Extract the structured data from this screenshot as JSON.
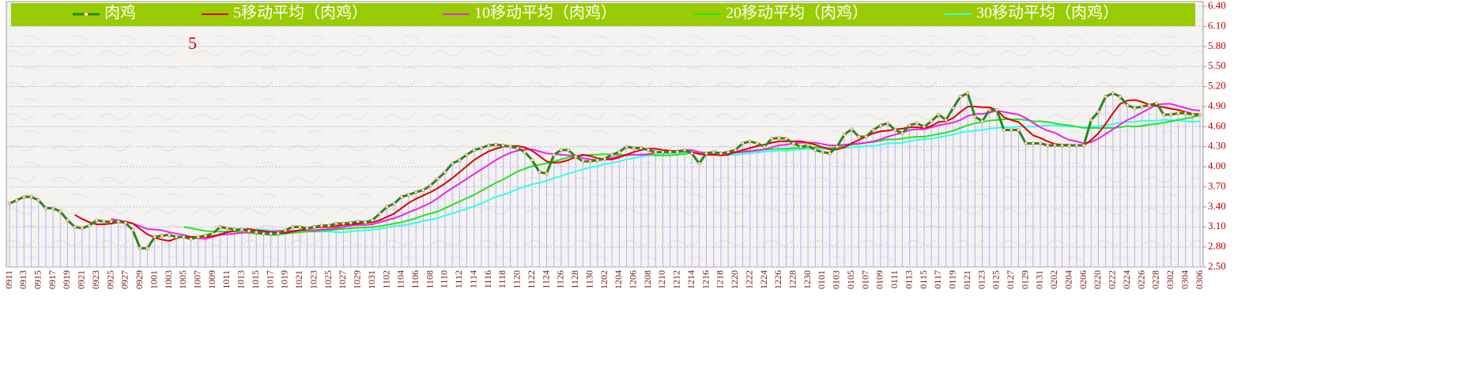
{
  "chart_data": {
    "type": "line",
    "annotation": "5",
    "grid": true,
    "ylim": [
      2.5,
      6.4
    ],
    "yticks": [
      {
        "value": 2.5,
        "label": "2.50"
      },
      {
        "value": 2.8,
        "label": "2.80"
      },
      {
        "value": 3.1,
        "label": "3.10"
      },
      {
        "value": 3.4,
        "label": "3.40"
      },
      {
        "value": 3.7,
        "label": "3.70"
      },
      {
        "value": 4.0,
        "label": "4.00"
      },
      {
        "value": 4.3,
        "label": "4.30"
      },
      {
        "value": 4.6,
        "label": "4.60"
      },
      {
        "value": 4.9,
        "label": "4.90"
      },
      {
        "value": 5.2,
        "label": "5.20"
      },
      {
        "value": 5.5,
        "label": "5.50"
      },
      {
        "value": 5.8,
        "label": "5.80"
      },
      {
        "value": 6.1,
        "label": "6.10"
      },
      {
        "value": 6.4,
        "label": "6.40"
      }
    ],
    "categories": [
      "0911",
      null,
      "0913",
      null,
      "0915",
      null,
      "0917",
      null,
      "0919",
      null,
      "0921",
      null,
      "0923",
      null,
      "0925",
      null,
      "0927",
      null,
      "0929",
      null,
      "1001",
      null,
      "1003",
      null,
      "1005",
      null,
      "1007",
      null,
      "1009",
      null,
      "1011",
      null,
      "1013",
      null,
      "1015",
      null,
      "1017",
      null,
      "1019",
      null,
      "1021",
      null,
      "1023",
      null,
      "1025",
      null,
      "1027",
      null,
      "1029",
      null,
      "1031",
      null,
      "1102",
      null,
      "1104",
      null,
      "1106",
      null,
      "1108",
      null,
      "1110",
      null,
      "1112",
      null,
      "1114",
      null,
      "1116",
      null,
      "1118",
      null,
      "1120",
      null,
      "1122",
      null,
      "1124",
      null,
      "1126",
      null,
      "1128",
      null,
      "1130",
      null,
      "1202",
      null,
      "1204",
      null,
      "1206",
      null,
      "1208",
      null,
      "1210",
      null,
      "1212",
      null,
      "1214",
      null,
      "1216",
      null,
      "1218",
      null,
      "1220",
      null,
      "1222",
      null,
      "1224",
      null,
      "1226",
      null,
      "1228",
      null,
      "1230",
      null,
      "0101",
      null,
      "0103",
      null,
      "0105",
      null,
      "0107",
      null,
      "0109",
      null,
      "0111",
      null,
      "0113",
      null,
      "0115",
      null,
      "0117",
      null,
      "0119",
      null,
      "0121",
      null,
      "0123",
      null,
      "0125",
      null,
      "0127",
      null,
      "0129",
      null,
      "0131",
      null,
      "0202",
      null,
      "0204",
      null,
      "0206",
      null,
      "0220",
      null,
      "0222",
      null,
      "0224",
      null,
      "0226",
      null,
      "0228",
      null,
      "0302",
      null,
      "0304",
      null,
      "0306"
    ],
    "series": [
      {
        "name": "肉鸡",
        "color": "#1e8c1e",
        "values": [
          3.45,
          3.5,
          3.55,
          3.55,
          3.5,
          3.38,
          3.38,
          3.33,
          3.2,
          3.1,
          3.08,
          3.12,
          3.2,
          3.18,
          3.18,
          3.18,
          3.16,
          3.05,
          2.78,
          2.78,
          2.95,
          2.97,
          2.98,
          2.95,
          2.95,
          2.92,
          2.95,
          2.97,
          3.0,
          3.1,
          3.08,
          3.06,
          3.06,
          3.04,
          3.02,
          3.0,
          3.0,
          3.0,
          3.05,
          3.1,
          3.1,
          3.08,
          3.1,
          3.12,
          3.12,
          3.15,
          3.15,
          3.16,
          3.18,
          3.17,
          3.2,
          3.3,
          3.4,
          3.45,
          3.55,
          3.58,
          3.62,
          3.65,
          3.72,
          3.82,
          3.92,
          4.05,
          4.1,
          4.18,
          4.25,
          4.28,
          4.32,
          4.33,
          4.32,
          4.3,
          4.28,
          4.22,
          4.1,
          3.92,
          3.9,
          4.18,
          4.25,
          4.25,
          4.15,
          4.08,
          4.08,
          4.1,
          4.12,
          4.18,
          4.22,
          4.3,
          4.28,
          4.28,
          4.25,
          4.22,
          4.22,
          4.22,
          4.22,
          4.25,
          4.2,
          4.05,
          4.2,
          4.22,
          4.2,
          4.22,
          4.25,
          4.35,
          4.38,
          4.35,
          4.3,
          4.42,
          4.43,
          4.42,
          4.35,
          4.3,
          4.32,
          4.25,
          4.22,
          4.2,
          4.3,
          4.48,
          4.56,
          4.45,
          4.45,
          4.55,
          4.62,
          4.65,
          4.55,
          4.5,
          4.62,
          4.65,
          4.6,
          4.68,
          4.78,
          4.7,
          4.88,
          5.05,
          5.1,
          4.75,
          4.68,
          4.85,
          4.85,
          4.55,
          4.55,
          4.55,
          4.35,
          4.35,
          4.35,
          4.32,
          4.32,
          4.32,
          4.32,
          4.32,
          4.32,
          4.7,
          4.82,
          5.05,
          5.1,
          5.05,
          4.92,
          4.88,
          4.9,
          4.92,
          4.95,
          4.78,
          4.78,
          4.8,
          4.8,
          4.78,
          4.78
        ]
      },
      {
        "name": "5移动平均（肉鸡）",
        "color": "#e00000",
        "values": [
          null,
          null,
          null,
          null,
          null,
          null,
          null,
          null,
          null,
          3.28,
          3.22,
          3.17,
          3.14,
          3.14,
          3.15,
          3.17,
          3.18,
          3.15,
          3.07,
          2.99,
          2.94,
          2.91,
          2.89,
          2.93,
          2.96,
          2.95,
          2.95,
          2.95,
          2.96,
          2.99,
          3.02,
          3.04,
          3.06,
          3.07,
          3.05,
          3.04,
          3.02,
          3.01,
          3.01,
          3.03,
          3.05,
          3.07,
          3.09,
          3.1,
          3.1,
          3.11,
          3.13,
          3.14,
          3.15,
          3.16,
          3.17,
          3.2,
          3.25,
          3.3,
          3.38,
          3.46,
          3.52,
          3.57,
          3.62,
          3.68,
          3.75,
          3.83,
          3.92,
          4.01,
          4.1,
          4.17,
          4.23,
          4.27,
          4.3,
          4.31,
          4.31,
          4.29,
          4.24,
          4.16,
          4.08,
          4.06,
          4.07,
          4.1,
          4.15,
          4.18,
          4.16,
          4.13,
          4.11,
          4.11,
          4.14,
          4.18,
          4.22,
          4.25,
          4.27,
          4.27,
          4.25,
          4.24,
          4.23,
          4.23,
          4.22,
          4.19,
          4.18,
          4.18,
          4.17,
          4.18,
          4.22,
          4.25,
          4.28,
          4.31,
          4.33,
          4.36,
          4.38,
          4.38,
          4.38,
          4.38,
          4.36,
          4.33,
          4.29,
          4.26,
          4.26,
          4.29,
          4.35,
          4.4,
          4.45,
          4.5,
          4.53,
          4.54,
          4.56,
          4.57,
          4.59,
          4.59,
          4.58,
          4.61,
          4.67,
          4.68,
          4.73,
          4.82,
          4.9,
          4.9,
          4.89,
          4.89,
          4.85,
          4.74,
          4.7,
          4.67,
          4.57,
          4.47,
          4.43,
          4.38,
          4.34,
          4.33,
          4.33,
          4.32,
          4.32,
          4.4,
          4.5,
          4.64,
          4.8,
          4.94,
          4.99,
          5.0,
          4.97,
          4.93,
          4.91,
          4.89,
          4.87,
          4.85,
          4.82,
          4.79,
          4.79
        ]
      },
      {
        "name": "10移动平均（肉鸡）",
        "color": "#ee22ee",
        "values": [
          null,
          null,
          null,
          null,
          null,
          null,
          null,
          null,
          null,
          null,
          null,
          null,
          null,
          null,
          3.22,
          3.2,
          3.18,
          3.15,
          3.11,
          3.07,
          3.06,
          3.05,
          3.02,
          3.0,
          2.98,
          2.95,
          2.93,
          2.92,
          2.95,
          2.98,
          2.99,
          3.0,
          3.01,
          3.02,
          3.02,
          3.03,
          3.03,
          3.04,
          3.04,
          3.04,
          3.05,
          3.05,
          3.05,
          3.06,
          3.07,
          3.08,
          3.1,
          3.12,
          3.13,
          3.13,
          3.14,
          3.17,
          3.2,
          3.23,
          3.27,
          3.32,
          3.36,
          3.41,
          3.46,
          3.53,
          3.61,
          3.68,
          3.75,
          3.82,
          3.89,
          3.96,
          4.03,
          4.1,
          4.16,
          4.21,
          4.24,
          4.26,
          4.26,
          4.23,
          4.2,
          4.19,
          4.18,
          4.17,
          4.16,
          4.13,
          4.11,
          4.1,
          4.11,
          4.13,
          4.16,
          4.17,
          4.18,
          4.18,
          4.19,
          4.21,
          4.22,
          4.23,
          4.24,
          4.25,
          4.25,
          4.22,
          4.21,
          4.21,
          4.2,
          4.2,
          4.21,
          4.22,
          4.23,
          4.24,
          4.26,
          4.29,
          4.32,
          4.33,
          4.35,
          4.36,
          4.36,
          4.36,
          4.34,
          4.32,
          4.32,
          4.33,
          4.34,
          4.35,
          4.36,
          4.38,
          4.41,
          4.45,
          4.48,
          4.51,
          4.55,
          4.56,
          4.56,
          4.59,
          4.62,
          4.64,
          4.66,
          4.7,
          4.76,
          4.79,
          4.79,
          4.81,
          4.84,
          4.82,
          4.8,
          4.78,
          4.73,
          4.66,
          4.59,
          4.54,
          4.51,
          4.45,
          4.4,
          4.38,
          4.35,
          4.37,
          4.42,
          4.49,
          4.56,
          4.63,
          4.7,
          4.75,
          4.81,
          4.87,
          4.93,
          4.94,
          4.94,
          4.91,
          4.88,
          4.85,
          4.84
        ]
      },
      {
        "name": "20移动平均（肉鸡）",
        "color": "#22e622",
        "values": [
          null,
          null,
          null,
          null,
          null,
          null,
          null,
          null,
          null,
          null,
          null,
          null,
          null,
          null,
          null,
          null,
          null,
          null,
          null,
          null,
          null,
          null,
          null,
          null,
          3.1,
          3.08,
          3.06,
          3.04,
          3.03,
          3.03,
          3.03,
          3.03,
          3.02,
          3.01,
          3.0,
          2.99,
          2.98,
          2.98,
          3.0,
          3.01,
          3.02,
          3.03,
          3.03,
          3.04,
          3.05,
          3.06,
          3.07,
          3.08,
          3.09,
          3.09,
          3.1,
          3.11,
          3.13,
          3.15,
          3.17,
          3.2,
          3.23,
          3.27,
          3.3,
          3.33,
          3.38,
          3.43,
          3.48,
          3.53,
          3.58,
          3.64,
          3.7,
          3.76,
          3.81,
          3.87,
          3.93,
          3.97,
          4.01,
          4.03,
          4.05,
          4.08,
          4.11,
          4.14,
          4.16,
          4.17,
          4.18,
          4.18,
          4.19,
          4.18,
          4.18,
          4.18,
          4.18,
          4.18,
          4.18,
          4.17,
          4.17,
          4.17,
          4.18,
          4.19,
          4.21,
          4.2,
          4.2,
          4.2,
          4.2,
          4.21,
          4.22,
          4.23,
          4.24,
          4.25,
          4.26,
          4.26,
          4.27,
          4.27,
          4.28,
          4.28,
          4.29,
          4.29,
          4.29,
          4.28,
          4.29,
          4.31,
          4.33,
          4.34,
          4.36,
          4.37,
          4.39,
          4.41,
          4.41,
          4.42,
          4.44,
          4.45,
          4.45,
          4.47,
          4.49,
          4.51,
          4.54,
          4.58,
          4.62,
          4.65,
          4.67,
          4.69,
          4.7,
          4.71,
          4.71,
          4.71,
          4.7,
          4.68,
          4.68,
          4.67,
          4.65,
          4.63,
          4.62,
          4.6,
          4.58,
          4.58,
          4.58,
          4.58,
          4.58,
          4.59,
          4.61,
          4.6,
          4.61,
          4.63,
          4.64,
          4.66,
          4.68,
          4.7,
          4.72,
          4.74,
          4.77
        ]
      },
      {
        "name": "30移动平均（肉鸡）",
        "color": "#33ffee",
        "values": [
          null,
          null,
          null,
          null,
          null,
          null,
          null,
          null,
          null,
          null,
          null,
          null,
          null,
          null,
          null,
          null,
          null,
          null,
          null,
          null,
          null,
          null,
          null,
          null,
          null,
          null,
          null,
          null,
          null,
          null,
          null,
          null,
          null,
          null,
          3.07,
          3.06,
          3.05,
          3.04,
          3.04,
          3.03,
          3.03,
          3.04,
          3.03,
          3.03,
          3.03,
          3.02,
          3.02,
          3.03,
          3.04,
          3.05,
          3.06,
          3.07,
          3.09,
          3.11,
          3.12,
          3.14,
          3.16,
          3.19,
          3.21,
          3.23,
          3.27,
          3.3,
          3.34,
          3.37,
          3.41,
          3.45,
          3.5,
          3.55,
          3.58,
          3.62,
          3.67,
          3.7,
          3.74,
          3.76,
          3.79,
          3.83,
          3.86,
          3.9,
          3.93,
          3.96,
          3.99,
          4.01,
          4.04,
          4.06,
          4.08,
          4.11,
          4.13,
          4.15,
          4.17,
          4.18,
          4.19,
          4.2,
          4.21,
          4.2,
          4.21,
          4.2,
          4.19,
          4.19,
          4.19,
          4.18,
          4.18,
          4.19,
          4.2,
          4.21,
          4.23,
          4.23,
          4.24,
          4.24,
          4.25,
          4.26,
          4.27,
          4.27,
          4.27,
          4.27,
          4.28,
          4.28,
          4.29,
          4.3,
          4.31,
          4.31,
          4.33,
          4.35,
          4.35,
          4.36,
          4.38,
          4.4,
          4.41,
          4.42,
          4.44,
          4.46,
          4.48,
          4.51,
          4.53,
          4.54,
          4.55,
          4.57,
          4.58,
          4.59,
          4.59,
          4.6,
          4.6,
          4.6,
          4.61,
          4.62,
          4.62,
          4.61,
          4.6,
          4.6,
          4.59,
          4.6,
          4.61,
          4.62,
          4.64,
          4.66,
          4.67,
          4.67,
          4.69,
          4.69,
          4.69,
          4.7,
          4.7,
          4.69,
          4.68,
          4.67,
          4.68
        ]
      }
    ]
  }
}
